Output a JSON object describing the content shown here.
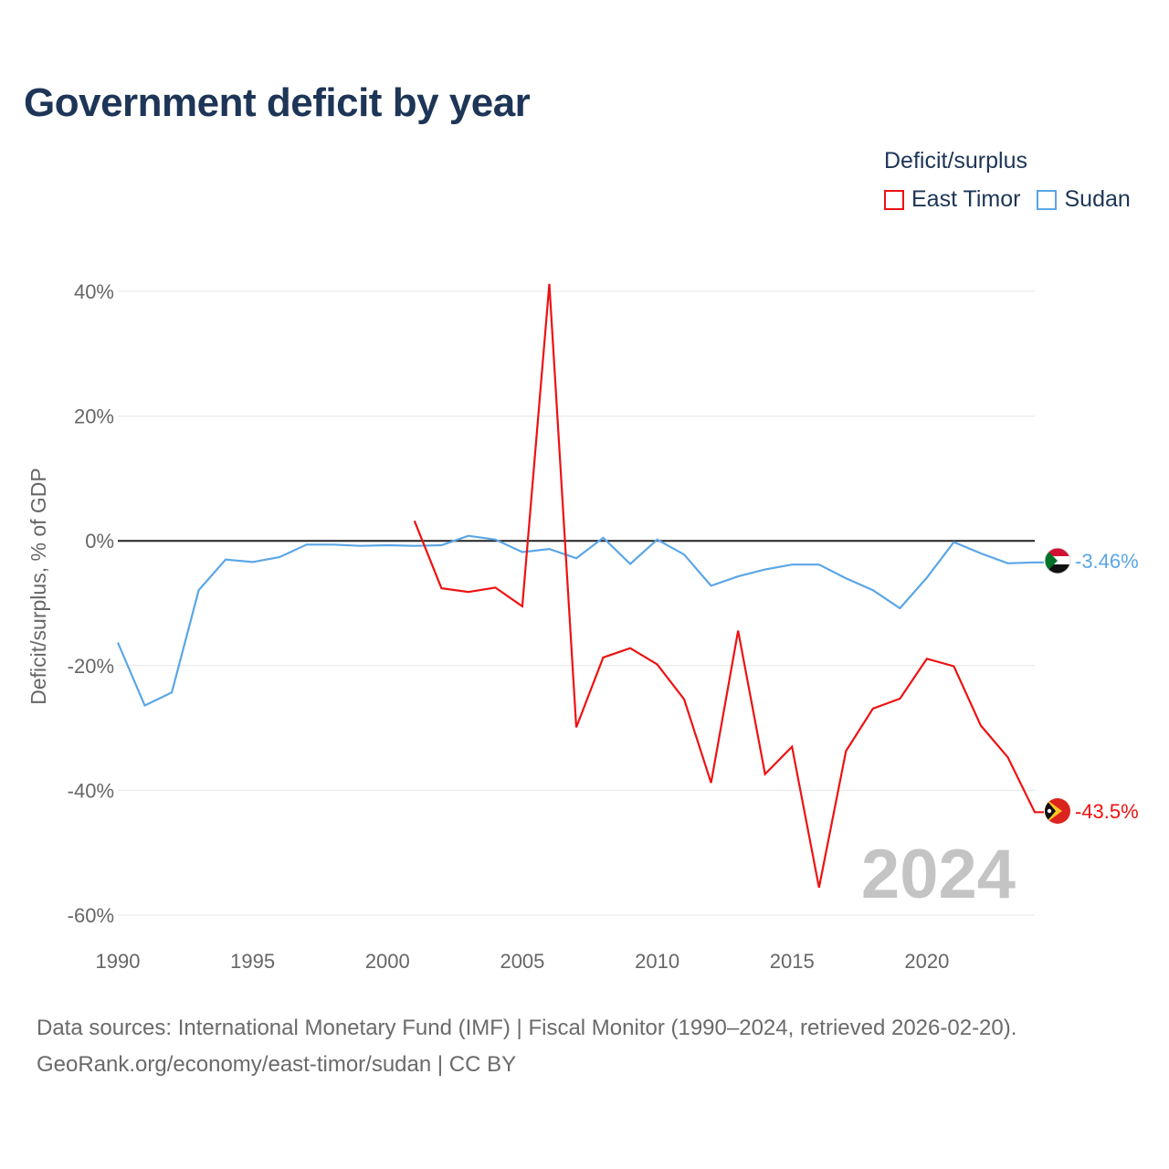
{
  "header": {
    "title": "Government deficit by year"
  },
  "legend": {
    "title": "Deficit/surplus",
    "items": [
      {
        "label": "East Timor",
        "color": "#ee1111"
      },
      {
        "label": "Sudan",
        "color": "#5ba6e6"
      }
    ]
  },
  "footer": {
    "line1": "Data sources: International Monetary Fund (IMF) | Fiscal Monitor (1990–2024, retrieved 2026-02-20).",
    "line2": "GeoRank.org/economy/east-timor/sudan | CC BY"
  },
  "chart_data": {
    "type": "line",
    "title": "Government deficit by year",
    "xlabel": "",
    "ylabel": "Deficit/surplus, % of GDP",
    "xlim": [
      1990,
      2024
    ],
    "ylim": [
      -60,
      40
    ],
    "xticks": [
      1990,
      1995,
      2000,
      2005,
      2010,
      2015,
      2020
    ],
    "yticks": [
      40,
      20,
      0,
      -20,
      -40,
      -60
    ],
    "ytick_labels": [
      "40%",
      "20%",
      "0%",
      "-20%",
      "-40%",
      "-60%"
    ],
    "year_label": "2024",
    "series": [
      {
        "name": "East Timor",
        "color": "#ee1111",
        "end_label": "-43.5%",
        "x": [
          2001,
          2002,
          2003,
          2004,
          2005,
          2006,
          2007,
          2008,
          2009,
          2010,
          2011,
          2012,
          2013,
          2014,
          2015,
          2016,
          2017,
          2018,
          2019,
          2020,
          2021,
          2022,
          2023,
          2024
        ],
        "values": [
          3.2,
          -7.6,
          -8.2,
          -7.5,
          -10.5,
          41.2,
          -29.9,
          -18.7,
          -17.2,
          -19.8,
          -25.4,
          -38.8,
          -14.4,
          -37.4,
          -33.0,
          -55.6,
          -33.7,
          -26.9,
          -25.3,
          -18.9,
          -20.1,
          -29.6,
          -34.7,
          -43.5
        ]
      },
      {
        "name": "Sudan",
        "color": "#5ba6e6",
        "end_label": "-3.46%",
        "x": [
          1990,
          1991,
          1992,
          1993,
          1994,
          1995,
          1996,
          1997,
          1998,
          1999,
          2000,
          2001,
          2002,
          2003,
          2004,
          2005,
          2006,
          2007,
          2008,
          2009,
          2010,
          2011,
          2012,
          2013,
          2014,
          2015,
          2016,
          2017,
          2018,
          2019,
          2020,
          2021,
          2022,
          2023,
          2024
        ],
        "values": [
          -16.3,
          -26.4,
          -24.3,
          -7.9,
          -3.0,
          -3.4,
          -2.6,
          -0.6,
          -0.6,
          -0.8,
          -0.7,
          -0.8,
          -0.7,
          0.8,
          0.2,
          -1.8,
          -1.3,
          -2.8,
          0.5,
          -3.7,
          0.2,
          -2.2,
          -7.2,
          -5.7,
          -4.6,
          -3.8,
          -3.8,
          -6.0,
          -7.9,
          -10.8,
          -5.9,
          -0.2,
          -2.0,
          -3.6,
          -3.46
        ]
      }
    ]
  }
}
